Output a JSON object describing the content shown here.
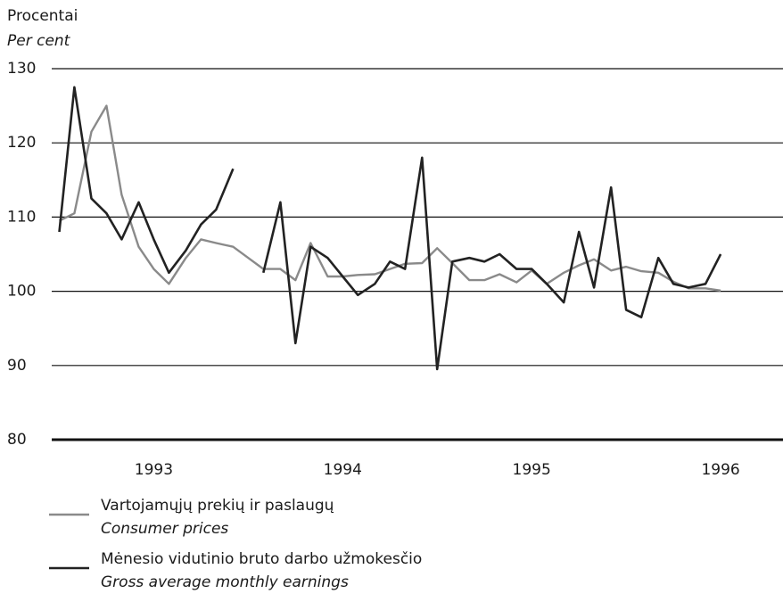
{
  "chart_data": {
    "type": "line",
    "y_label": "Procentai",
    "y_label_en": "Per cent",
    "x": [
      1993,
      1993.08,
      1993.17,
      1993.25,
      1993.33,
      1993.42,
      1993.5,
      1993.58,
      1993.67,
      1993.75,
      1993.83,
      1993.92,
      1994,
      1994.08,
      1994.17,
      1994.25,
      1994.33,
      1994.42,
      1994.5,
      1994.58,
      1994.67,
      1994.75,
      1994.83,
      1994.92,
      1995,
      1995.08,
      1995.17,
      1995.25,
      1995.33,
      1995.42,
      1995.5,
      1995.58,
      1995.67,
      1995.75,
      1995.83,
      1995.92,
      1996,
      1996.08,
      1996.17,
      1996.25,
      1996.33,
      1996.42,
      1996.5
    ],
    "series": [
      {
        "name": "Vartojamųjų prekių ir paslaugų",
        "name_en": "Consumer prices",
        "color": "#8a8a8a",
        "values": [
          109.5,
          110.5,
          121.5,
          125,
          113,
          106,
          103,
          101,
          104.5,
          107,
          106.5,
          106,
          104.5,
          103,
          103,
          101.5,
          106.5,
          102,
          102,
          102.2,
          102.3,
          103,
          103.7,
          103.8,
          105.8,
          103.8,
          101.5,
          101.5,
          102.3,
          101.2,
          102.8,
          101,
          102.5,
          103.5,
          104.3,
          102.8,
          103.3,
          102.7,
          102.5,
          101.3,
          100.4,
          100.4,
          100.1
        ]
      },
      {
        "name": "Mėnesio vidutinio bruto darbo užmokesčio",
        "name_en": "Gross average monthly earnings",
        "color": "#222222",
        "values": [
          108,
          127.5,
          112.5,
          110.5,
          107,
          112,
          107,
          102.5,
          105.5,
          109,
          111,
          116.5,
          null,
          102.5,
          112,
          93,
          106,
          104.5,
          102,
          99.5,
          101,
          104,
          103,
          118,
          89.5,
          104,
          104.5,
          104,
          105,
          103,
          103,
          101,
          98.5,
          108,
          100.5,
          114,
          97.5,
          96.5,
          104.5,
          101,
          100.5,
          101,
          105
        ]
      }
    ],
    "xlim": [
      1992.96,
      1996.83
    ],
    "xticks": [
      {
        "value": 1993.5,
        "label": "1993"
      },
      {
        "value": 1994.5,
        "label": "1994"
      },
      {
        "value": 1995.5,
        "label": "1995"
      },
      {
        "value": 1996.5,
        "label": "1996"
      }
    ],
    "ylim": [
      80,
      130
    ],
    "yticks": [
      80,
      90,
      100,
      110,
      120,
      130
    ],
    "grid": true
  }
}
